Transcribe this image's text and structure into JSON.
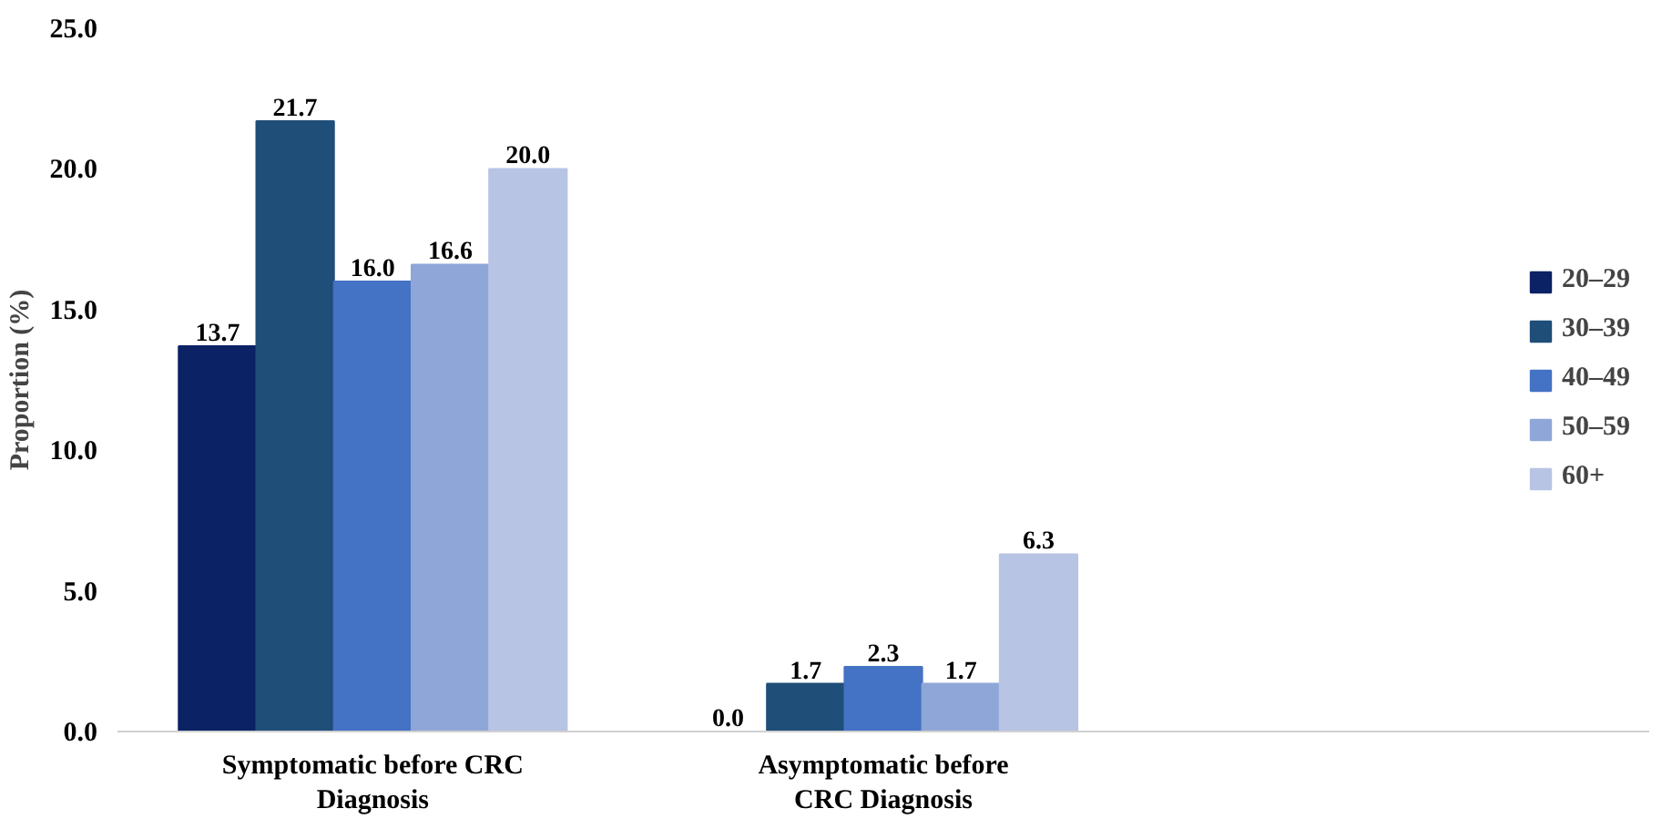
{
  "chart_data": {
    "type": "bar",
    "ylabel": "Proportion (%)",
    "categories": [
      "Symptomatic before CRC Diagnosis",
      "Asymptomatic before CRC Diagnosis",
      null
    ],
    "series": [
      {
        "name": "20–29",
        "color": "#0b2265",
        "values": [
          13.7,
          0.0,
          null
        ],
        "value_labels": [
          "13.7",
          "0.0",
          null
        ]
      },
      {
        "name": "30–39",
        "color": "#1f4e79",
        "values": [
          21.7,
          1.7,
          null
        ],
        "value_labels": [
          "21.7",
          "1.7",
          null
        ]
      },
      {
        "name": "40–49",
        "color": "#4472c4",
        "values": [
          16.0,
          2.3,
          null
        ],
        "value_labels": [
          "16.0",
          "2.3",
          null
        ]
      },
      {
        "name": "50–59",
        "color": "#8fa6d8",
        "values": [
          16.6,
          1.7,
          null
        ],
        "value_labels": [
          "16.6",
          "1.7",
          null
        ]
      },
      {
        "name": "60+",
        "color": "#b8c4e4",
        "values": [
          20.0,
          6.3,
          null
        ],
        "value_labels": [
          "20.0",
          "6.3",
          null
        ]
      }
    ],
    "ylim": [
      0,
      25
    ],
    "yticks": [
      {
        "value": 0,
        "label": "0.0"
      },
      {
        "value": 5,
        "label": "5.0"
      },
      {
        "value": 10,
        "label": "10.0"
      },
      {
        "value": 15,
        "label": "15.0"
      },
      {
        "value": 20,
        "label": "20.0"
      },
      {
        "value": 25,
        "label": "25.0"
      }
    ],
    "grid": false,
    "legend": "right"
  }
}
